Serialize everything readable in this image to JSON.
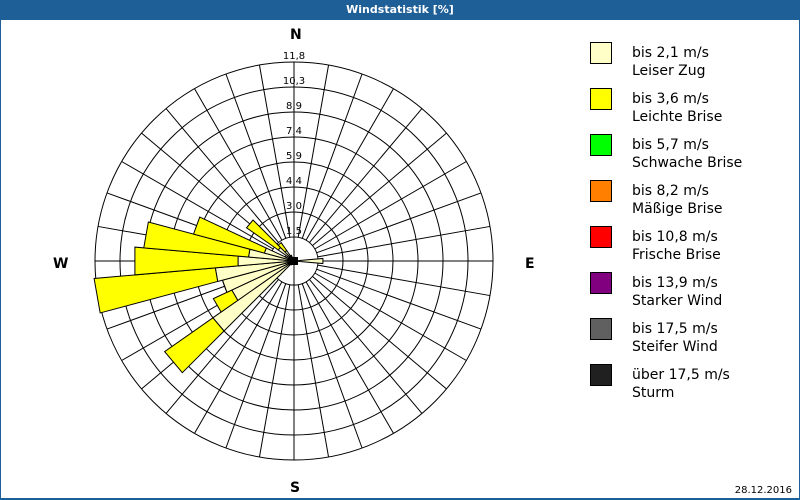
{
  "window": {
    "title": "Windstatistik [%]"
  },
  "compass": {
    "n": "N",
    "e": "E",
    "s": "S",
    "w": "W"
  },
  "date": "28.12.2016",
  "legend": [
    {
      "range": "bis 2,1 m/s",
      "name": "Leiser Zug",
      "color": "#ffffc8"
    },
    {
      "range": "bis 3,6 m/s",
      "name": "Leichte Brise",
      "color": "#ffff00"
    },
    {
      "range": "bis 5,7 m/s",
      "name": "Schwache Brise",
      "color": "#00ff00"
    },
    {
      "range": "bis 8,2 m/s",
      "name": "Mäßige Brise",
      "color": "#ff8000"
    },
    {
      "range": "bis 10,8 m/s",
      "name": "Frische Brise",
      "color": "#ff0000"
    },
    {
      "range": "bis 13,9 m/s",
      "name": "Starker Wind",
      "color": "#800080"
    },
    {
      "range": "bis 17,5 m/s",
      "name": "Steifer Wind",
      "color": "#606060"
    },
    {
      "range": "über 17,5 m/s",
      "name": "Sturm",
      "color": "#202020"
    }
  ],
  "chart_data": {
    "type": "polar-bar (wind rose)",
    "title": "Windstatistik [%]",
    "radial_ticks": [
      "1,5",
      "3,0",
      "4,4",
      "5,9",
      "7,4",
      "8,9",
      "10,3",
      "11,8"
    ],
    "radial_tick_values": [
      1.5,
      3.0,
      4.4,
      5.9,
      7.4,
      8.9,
      10.3,
      11.8
    ],
    "sector_width_deg": 10,
    "series_names": [
      "bis 2,1 m/s",
      "bis 3,6 m/s"
    ],
    "sectors": [
      {
        "dir": 90,
        "values": [
          1.8,
          0.0
        ]
      },
      {
        "dir": 220,
        "values": [
          0.3,
          0.0
        ]
      },
      {
        "dir": 230,
        "values": [
          5.9,
          3.5
        ]
      },
      {
        "dir": 240,
        "values": [
          4.1,
          1.2
        ]
      },
      {
        "dir": 250,
        "values": [
          4.4,
          0.0
        ]
      },
      {
        "dir": 260,
        "values": [
          4.7,
          7.2
        ]
      },
      {
        "dir": 270,
        "values": [
          3.4,
          6.1
        ]
      },
      {
        "dir": 280,
        "values": [
          2.8,
          6.2
        ]
      },
      {
        "dir": 290,
        "values": [
          1.9,
          4.3
        ]
      },
      {
        "dir": 300,
        "values": [
          0.6,
          0.0
        ]
      },
      {
        "dir": 310,
        "values": [
          1.2,
          2.3
        ]
      },
      {
        "dir": 320,
        "values": [
          0.8,
          0.6
        ]
      },
      {
        "dir": 330,
        "values": [
          0.4,
          0.0
        ]
      }
    ]
  }
}
